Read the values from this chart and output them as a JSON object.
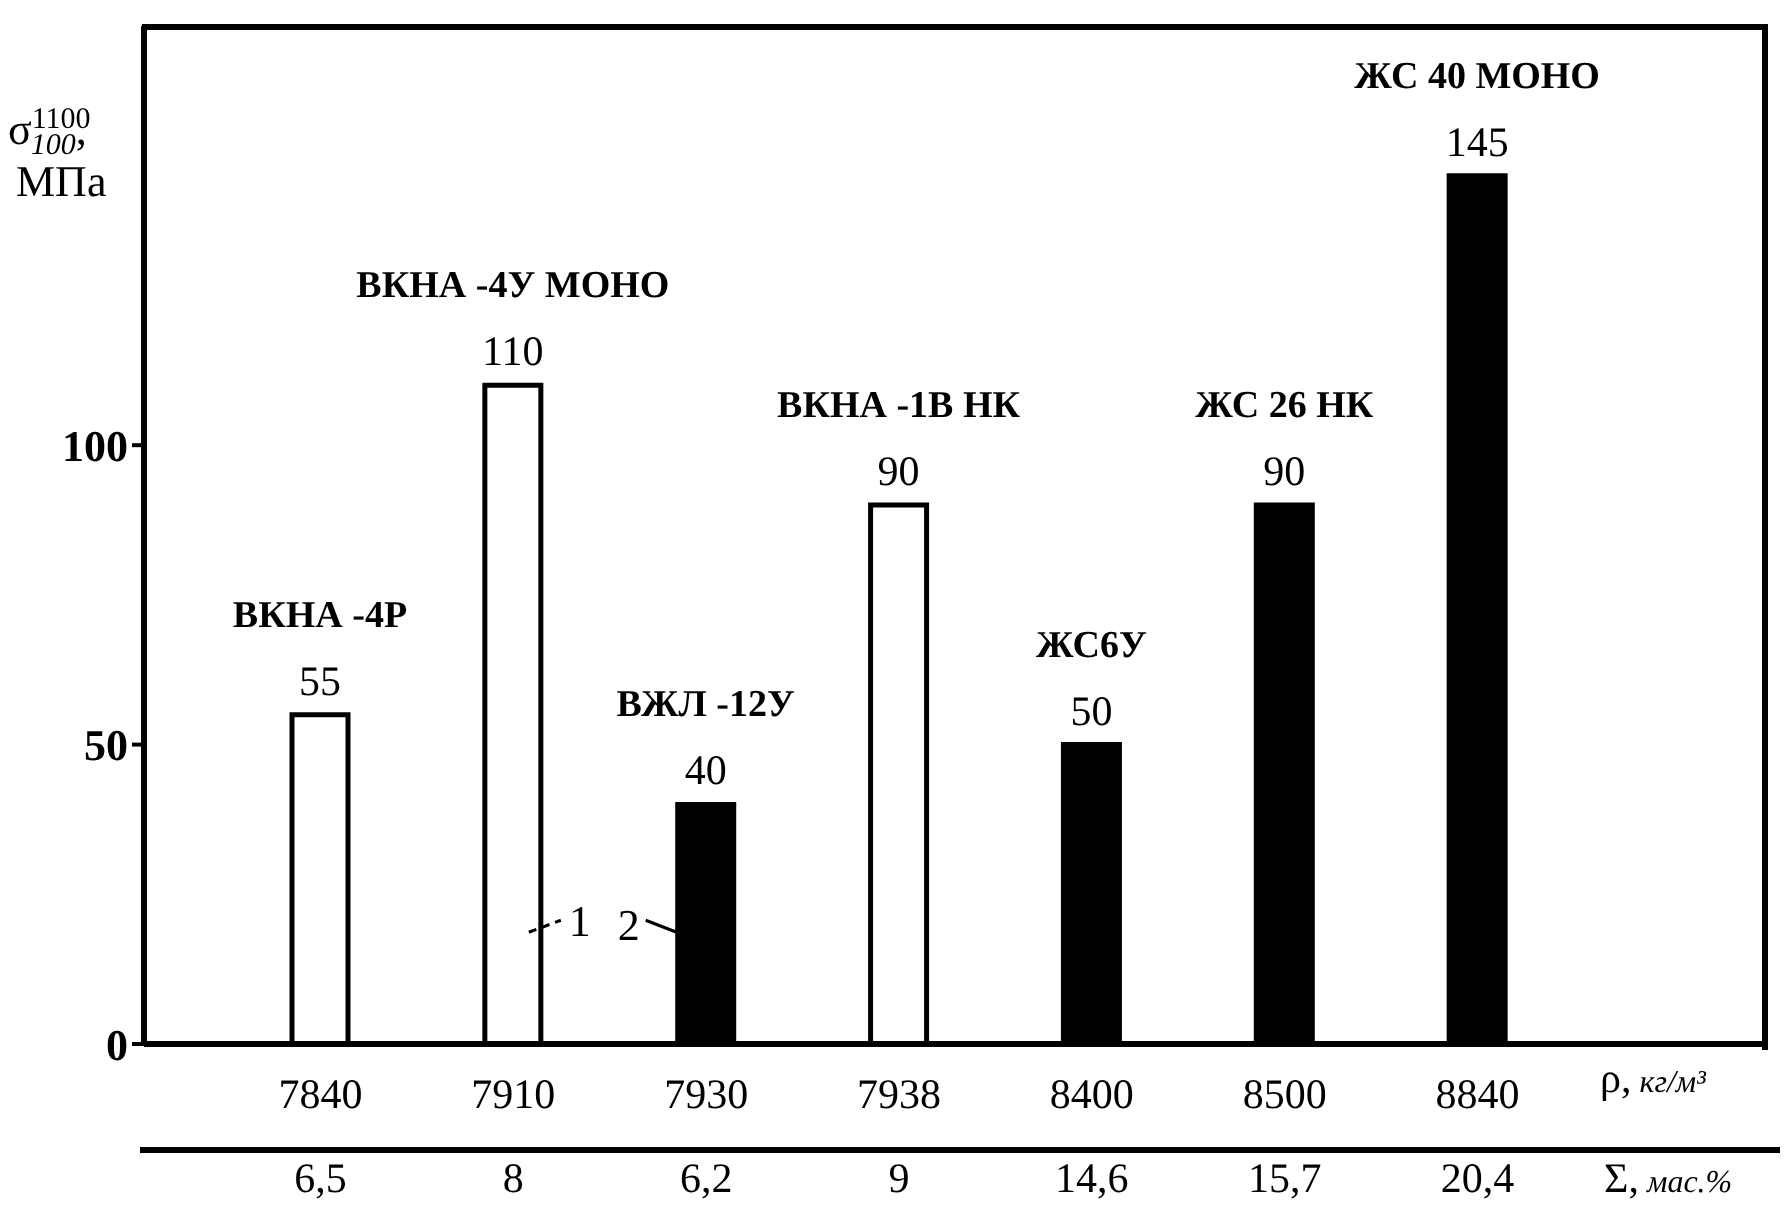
{
  "chart_data": {
    "type": "bar",
    "ylabel": "σ$^{1100}$$_{100}$, МПа",
    "xlabel": "ρ, кг/м³",
    "categories": [
      "7840",
      "7910",
      "7930",
      "7938",
      "8400",
      "8500",
      "8840"
    ],
    "values": [
      55,
      110,
      40,
      90,
      50,
      90,
      145
    ],
    "colors": [
      "#ffffff",
      "#ffffff",
      "#000000",
      "#ffffff",
      "#000000",
      "#000000",
      "#000000"
    ],
    "data_labels": true,
    "ylim": [
      0,
      170
    ],
    "yticks": [
      0,
      50,
      100
    ],
    "annotations": [
      {
        "text": "ВКНА -4Р",
        "x": "7840",
        "y": 55
      },
      {
        "text": "ВКНА -4У МОНО",
        "x": "7910",
        "y": 110
      },
      {
        "text": "ВЖЛ -12У",
        "x": "7930",
        "y": 40
      },
      {
        "text": "ВКНА -1В НК",
        "x": "7938",
        "y": 90
      },
      {
        "text": "ЖС6У",
        "x": "8400",
        "y": 50
      },
      {
        "text": "ЖС 26 НК",
        "x": "8500",
        "y": 90
      },
      {
        "text": "ЖС 40 МОНО",
        "x": "8840",
        "y": 145
      },
      "1",
      "2",
      "Σ, мас.%",
      "6,5",
      "8",
      "6,2",
      "9",
      "14,6",
      "15,7",
      "20,4"
    ]
  }
}
